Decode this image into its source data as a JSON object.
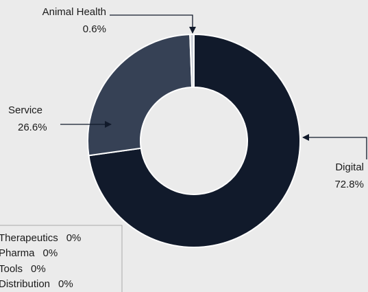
{
  "chart_data": {
    "type": "donut",
    "categories": [
      "Digital",
      "Service",
      "Animal Health",
      "Therapeutics",
      "Pharma",
      "Tools",
      "Distribution"
    ],
    "values": [
      72.8,
      26.6,
      0.6,
      0,
      0,
      0,
      0
    ],
    "value_labels": [
      "72.8%",
      "26.6%",
      "0.6%",
      "0%",
      "0%",
      "0%",
      "0%"
    ],
    "colors": [
      "#111a2b",
      "#364155",
      "#cfd3da",
      "#888888",
      "#888888",
      "#888888",
      "#888888"
    ]
  }
}
